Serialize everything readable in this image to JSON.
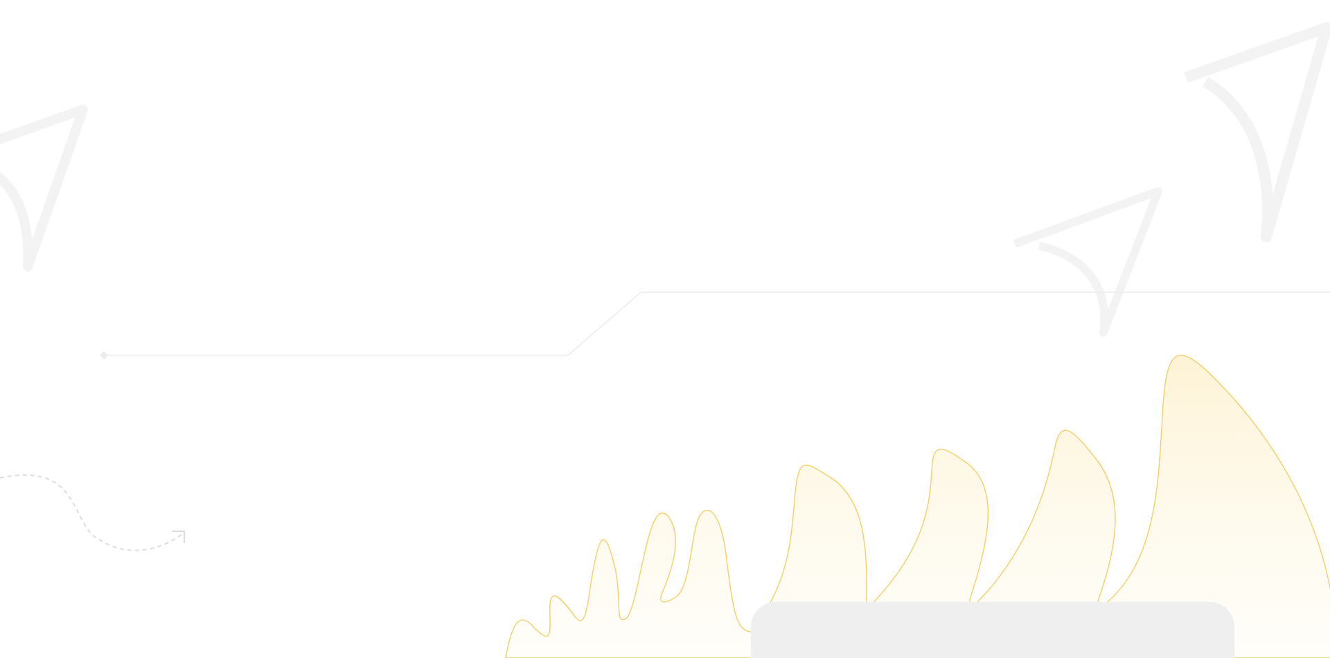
{
  "background": {
    "base_color": "#ffffff",
    "accent_color": "#f5c842",
    "wave_fill_color": "#fef6dc",
    "decoration_color": "#e6e6e6",
    "panel_color": "#efefef"
  },
  "icons": [
    "paper-plane-icon",
    "arrow-right-icon"
  ]
}
